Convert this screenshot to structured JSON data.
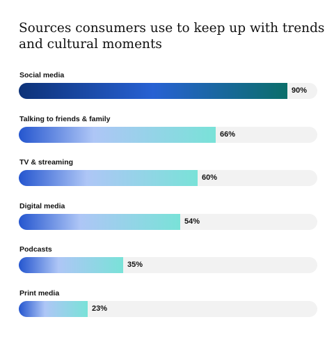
{
  "chart_data": {
    "type": "bar",
    "orientation": "horizontal",
    "title": "Sources consumers use to keep up with trends and cultural moments",
    "categories": [
      "Social media",
      "Talking to friends & family",
      "TV & streaming",
      "Digital media",
      "Podcasts",
      "Print media"
    ],
    "values": [
      90,
      66,
      60,
      54,
      35,
      23
    ],
    "value_labels": [
      "90%",
      "66%",
      "60%",
      "54%",
      "35%",
      "23%"
    ],
    "xlim": [
      0,
      100
    ],
    "grid": false,
    "legend": "none",
    "colors": {
      "highlight_start": "#0d3278",
      "highlight_mid": "#2761d3",
      "highlight_end": "#0b6e6a",
      "bar_start": "#2556cf",
      "bar_mid": "#aec6f6",
      "bar_end": "#79e2d8",
      "track": "#f2f2f2"
    }
  }
}
